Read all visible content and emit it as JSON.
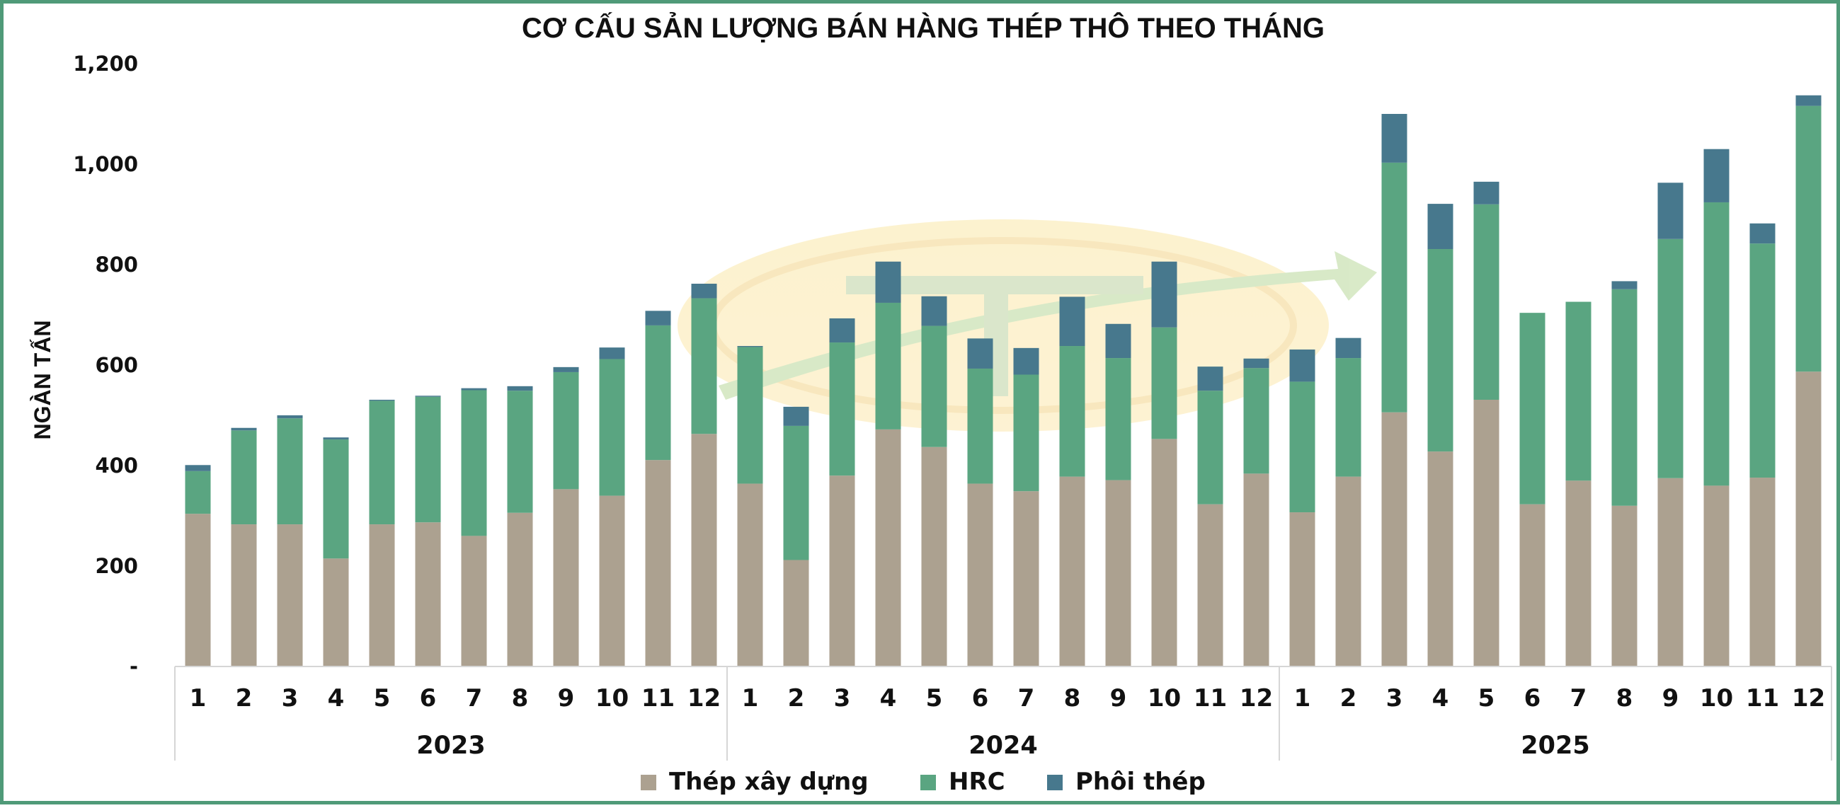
{
  "chart_data": {
    "type": "bar",
    "stacked": true,
    "title": "CƠ CẤU SẢN LƯỢNG BÁN HÀNG THÉP THÔ THEO THÁNG",
    "ylabel": "NGÀN TẤN",
    "xlabel": "",
    "ylim": [
      0,
      1200
    ],
    "yticks": [
      {
        "value": 0,
        "label": "-"
      },
      {
        "value": 200,
        "label": "200"
      },
      {
        "value": 400,
        "label": "400"
      },
      {
        "value": 600,
        "label": "600"
      },
      {
        "value": 800,
        "label": "800"
      },
      {
        "value": 1000,
        "label": "1,000"
      },
      {
        "value": 1200,
        "label": "1,200"
      }
    ],
    "groups": [
      {
        "label": "2023",
        "months": [
          "1",
          "2",
          "3",
          "4",
          "5",
          "6",
          "7",
          "8",
          "9",
          "10",
          "11",
          "12"
        ]
      },
      {
        "label": "2024",
        "months": [
          "1",
          "2",
          "3",
          "4",
          "5",
          "6",
          "7",
          "8",
          "9",
          "10",
          "11",
          "12"
        ]
      },
      {
        "label": "2025",
        "months": [
          "1",
          "2",
          "3",
          "4",
          "5",
          "6",
          "7",
          "8",
          "9",
          "10",
          "11",
          "12"
        ]
      }
    ],
    "series": [
      {
        "name": "Thép xây dựng",
        "color": "#aca190",
        "values": [
          304,
          283,
          283,
          215,
          283,
          287,
          260,
          306,
          353,
          340,
          411,
          463,
          364,
          212,
          380,
          472,
          437,
          364,
          349,
          378,
          371,
          453,
          323,
          384,
          307,
          378,
          506,
          428,
          531,
          323,
          370,
          320,
          375,
          360,
          376,
          587
        ]
      },
      {
        "name": "HRC",
        "color": "#5aa581",
        "values": [
          85,
          187,
          211,
          237,
          246,
          250,
          290,
          243,
          233,
          272,
          268,
          270,
          272,
          267,
          265,
          252,
          241,
          229,
          232,
          260,
          243,
          222,
          226,
          210,
          260,
          236,
          497,
          403,
          389,
          381,
          356,
          431,
          476,
          564,
          466,
          529
        ]
      },
      {
        "name": "Phôi thép",
        "color": "#47788d",
        "values": [
          12,
          5,
          6,
          4,
          2,
          2,
          4,
          9,
          10,
          23,
          29,
          29,
          2,
          38,
          48,
          82,
          59,
          60,
          53,
          98,
          68,
          131,
          48,
          19,
          64,
          40,
          97,
          90,
          45,
          0,
          0,
          16,
          112,
          106,
          40,
          21
        ]
      }
    ],
    "legend": {
      "position": "bottom"
    },
    "grid": false
  }
}
